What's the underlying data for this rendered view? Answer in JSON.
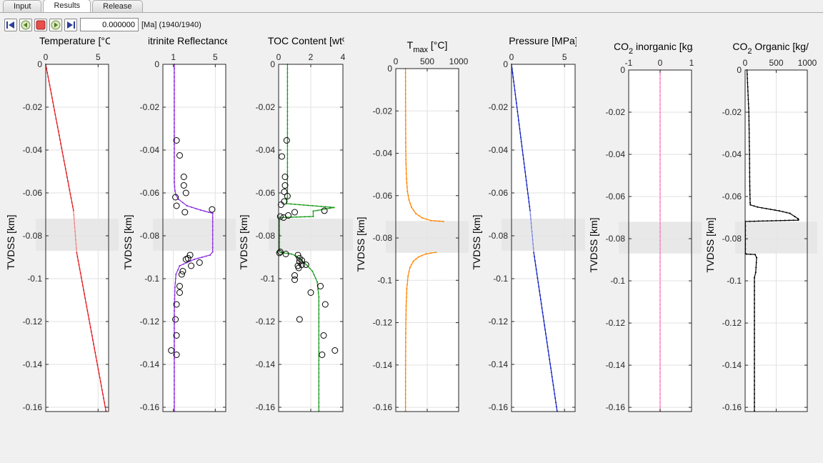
{
  "tabs": [
    {
      "label": "Input"
    },
    {
      "label": "Results",
      "active": true
    },
    {
      "label": "Release"
    }
  ],
  "toolbar": {
    "time_value": "0.000000",
    "time_label": "[Ma] (1940/1940)",
    "buttons": [
      "step-back-icon",
      "rewind-icon",
      "stop-icon",
      "play-icon",
      "step-forward-icon"
    ]
  },
  "depth_axis": {
    "label": "TVDSS [km]",
    "ylim": [
      -0.162,
      0
    ],
    "ticks": [
      0,
      -0.02,
      -0.04,
      -0.06,
      -0.08,
      -0.1,
      -0.12,
      -0.14,
      -0.16
    ],
    "tick_labels": [
      "0",
      "-0.02",
      "-0.04",
      "-0.06",
      "-0.08",
      "-0.1",
      "-0.12",
      "-0.14",
      "-0.16"
    ],
    "shade_range": [
      -0.072,
      -0.087
    ]
  },
  "chart_data": [
    {
      "type": "line",
      "title": "Temperature [°C]",
      "xlim": [
        0,
        6
      ],
      "xticks": [
        0,
        5
      ],
      "xtick_labels": [
        "0",
        "5"
      ],
      "color": "#e0171b",
      "series": [
        {
          "x": [
            0,
            2.65,
            2.95,
            5.75
          ],
          "y": [
            0,
            -0.0683,
            -0.0877,
            -0.1617
          ]
        }
      ],
      "gap_style": "faded"
    },
    {
      "type": "line",
      "title": "Vitrinite Reflectance [%]",
      "xlim": [
        0,
        6
      ],
      "xticks": [
        1,
        5
      ],
      "xtick_labels": [
        "1",
        "5"
      ],
      "color": "#8b2be2",
      "series": [
        {
          "x": [
            1.1,
            1.1,
            1.15,
            1.25,
            1.5,
            2.3,
            3.6,
            4.75,
            4.75,
            4.5,
            3.0,
            1.6,
            1.25,
            1.15,
            1.1,
            1.1
          ],
          "y": [
            0,
            -0.055,
            -0.059,
            -0.061,
            -0.063,
            -0.066,
            -0.068,
            -0.0695,
            -0.0875,
            -0.089,
            -0.091,
            -0.094,
            -0.098,
            -0.104,
            -0.115,
            -0.1617
          ]
        }
      ],
      "points": {
        "x": [
          1.3,
          1.6,
          2.0,
          2.0,
          2.2,
          1.2,
          2.1,
          4.7,
          2.6,
          2.4,
          2.2,
          3.5,
          2.7,
          1.9,
          1.8,
          1.6,
          1.6,
          1.3,
          1.2,
          1.3,
          1.3,
          0.8,
          1.3
        ],
        "y": [
          -0.0355,
          -0.0425,
          -0.0525,
          -0.0565,
          -0.06,
          -0.062,
          -0.069,
          -0.0677,
          -0.089,
          -0.0905,
          -0.091,
          -0.0925,
          -0.094,
          -0.0965,
          -0.098,
          -0.1035,
          -0.1065,
          -0.112,
          -0.119,
          -0.1265,
          -0.1355,
          -0.1335,
          -0.066
        ]
      }
    },
    {
      "type": "line",
      "title": "TOC Content [wt%]",
      "xlim": [
        0,
        4
      ],
      "xticks": [
        0,
        2,
        4
      ],
      "xtick_labels": [
        "0",
        "2",
        "4"
      ],
      "color": "#1a9c1a",
      "series": [
        {
          "x": [
            0.55,
            0.55,
            0.5,
            0.48,
            3.45,
            2.15,
            2.15,
            0.05,
            0.05,
            0.12,
            0.8,
            1.1,
            1.6,
            2.1,
            2.4,
            2.5,
            2.5
          ],
          "y": [
            0,
            -0.062,
            -0.063,
            -0.065,
            -0.0668,
            -0.0685,
            -0.071,
            -0.0715,
            -0.087,
            -0.0878,
            -0.0885,
            -0.0895,
            -0.0925,
            -0.0965,
            -0.1015,
            -0.1085,
            -0.1617
          ]
        }
      ],
      "points": {
        "x": [
          0.5,
          0.2,
          0.4,
          0.4,
          0.35,
          0.55,
          0.35,
          0.15,
          0.1,
          0.3,
          2.85,
          1.0,
          0.6,
          0.1,
          0.05,
          0.45,
          1.2,
          1.3,
          1.3,
          1.45,
          1.2,
          1.45,
          1.7,
          1.0,
          1.0,
          2.0,
          2.6,
          2.9,
          1.3,
          1.25,
          2.8,
          3.5,
          2.7
        ],
        "y": [
          -0.0355,
          -0.043,
          -0.0525,
          -0.0565,
          -0.0595,
          -0.0615,
          -0.064,
          -0.0655,
          -0.071,
          -0.0715,
          -0.0683,
          -0.069,
          -0.0705,
          -0.0875,
          -0.088,
          -0.0885,
          -0.089,
          -0.0905,
          -0.092,
          -0.0915,
          -0.094,
          -0.0935,
          -0.0935,
          -0.0985,
          -0.1005,
          -0.1065,
          -0.1035,
          -0.112,
          -0.119,
          -0.095,
          -0.1265,
          -0.1335,
          -0.1355
        ]
      }
    },
    {
      "type": "line",
      "title": "T",
      "title_sub": "max",
      "title_rest": " [°C]",
      "xlim": [
        0,
        1000
      ],
      "xticks": [
        0,
        500,
        1000
      ],
      "xtick_labels": [
        "0",
        "500",
        "1000"
      ],
      "color": "#ff8400",
      "series": [
        {
          "x": [
            155,
            156,
            158,
            162,
            170,
            185,
            210,
            250,
            320,
            420,
            560,
            760
          ],
          "y": [
            0,
            -0.02,
            -0.035,
            -0.045,
            -0.052,
            -0.058,
            -0.062,
            -0.0655,
            -0.0685,
            -0.0705,
            -0.0718,
            -0.0722
          ]
        },
        {
          "x": [
            640,
            480,
            360,
            280,
            225,
            195,
            175,
            165,
            158,
            156,
            155
          ],
          "y": [
            -0.0868,
            -0.0875,
            -0.089,
            -0.091,
            -0.094,
            -0.098,
            -0.104,
            -0.112,
            -0.125,
            -0.14,
            -0.1617
          ]
        }
      ]
    },
    {
      "type": "line",
      "title": "Pressure [MPa]",
      "xlim": [
        0,
        6
      ],
      "xticks": [
        0,
        5
      ],
      "xtick_labels": [
        "0",
        "5"
      ],
      "color": "#1020c0",
      "series": [
        {
          "x": [
            0,
            1.75,
            2.1,
            4.3
          ],
          "y": [
            0,
            -0.0683,
            -0.0877,
            -0.1617
          ]
        }
      ],
      "gap_style": "faded"
    },
    {
      "type": "line",
      "title": "CO",
      "title_sub": "2",
      "title_rest": " inorganic [kg/m",
      "xlim": [
        -1,
        1
      ],
      "xticks": [
        -1,
        0,
        1
      ],
      "xtick_labels": [
        "-1",
        "0",
        "1"
      ],
      "color": "#ff7fbf",
      "series": [
        {
          "x": [
            0,
            0
          ],
          "y": [
            0,
            -0.1617
          ]
        }
      ]
    },
    {
      "type": "line",
      "title": "CO",
      "title_sub": "2",
      "title_rest": " Organic [kg/m",
      "xlim": [
        0,
        1000
      ],
      "xticks": [
        0,
        500,
        1000
      ],
      "xtick_labels": [
        "0",
        "500",
        "1000"
      ],
      "color": "#000000",
      "series": [
        {
          "x": [
            30,
            60,
            70,
            75,
            80,
            85,
            200,
            550,
            720,
            800,
            850,
            860,
            850,
            5,
            5,
            20,
            160,
            185,
            170,
            150,
            150
          ],
          "y": [
            0,
            -0.02,
            -0.04,
            -0.055,
            -0.063,
            -0.064,
            -0.065,
            -0.0668,
            -0.068,
            -0.0695,
            -0.0705,
            -0.071,
            -0.0712,
            -0.0718,
            -0.087,
            -0.0873,
            -0.0875,
            -0.089,
            -0.096,
            -0.0985,
            -0.1617
          ]
        }
      ]
    }
  ]
}
